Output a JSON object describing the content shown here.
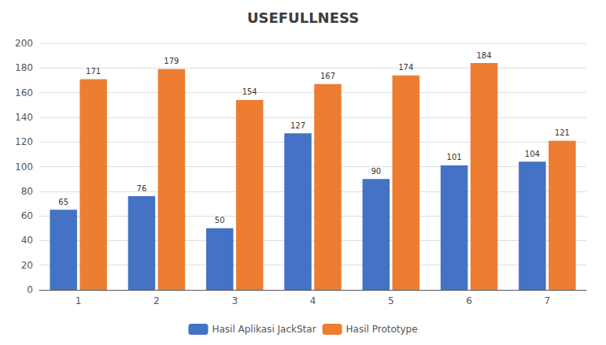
{
  "chart_data": {
    "type": "bar",
    "title": "USEFULLNESS",
    "categories": [
      "1",
      "2",
      "3",
      "4",
      "5",
      "6",
      "7"
    ],
    "series": [
      {
        "name": "Hasil Aplikasi JackStar",
        "color": "#4472C4",
        "values": [
          65,
          76,
          50,
          127,
          90,
          101,
          104
        ]
      },
      {
        "name": "Hasil Prototype",
        "color": "#ED7D31",
        "values": [
          171,
          179,
          154,
          167,
          174,
          184,
          121
        ]
      }
    ],
    "ylim": [
      0,
      200
    ],
    "yticks": [
      0,
      20,
      40,
      60,
      80,
      100,
      120,
      140,
      160,
      180,
      200
    ],
    "grid": true,
    "legend": "bottom",
    "data_labels": true
  }
}
